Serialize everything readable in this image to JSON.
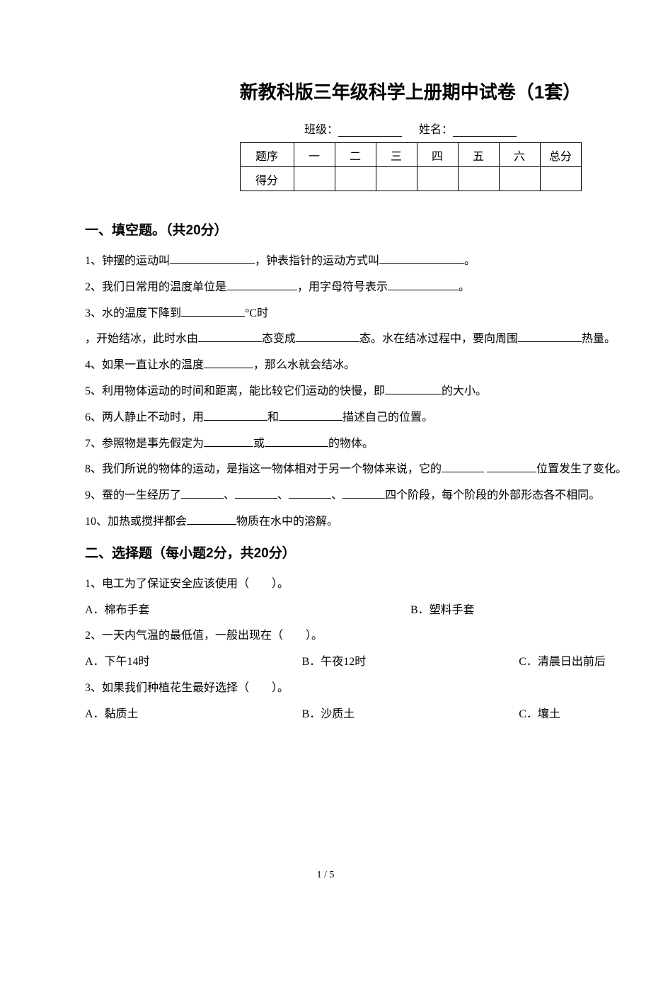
{
  "title": "新教科版三年级科学上册期中试卷（1套）",
  "info": {
    "class_label": "班级：",
    "name_label": "姓名："
  },
  "score_table": {
    "row1": [
      "题序",
      "一",
      "二",
      "三",
      "四",
      "五",
      "六",
      "总分"
    ],
    "row2_label": "得分"
  },
  "section1": {
    "heading": "一、填空题。（共20分）",
    "q1_a": "1、钟摆的运动叫",
    "q1_b": "，钟表指针的运动方式叫",
    "q1_c": "。",
    "q2_a": "2、我们日常用的温度单位是",
    "q2_b": "，用字母符号表示",
    "q2_c": "。",
    "q3_a": "3、水的温度下降到",
    "q3_b": "°C时",
    "q3_c": "，开始结冰，此时水由",
    "q3_d": "态变成",
    "q3_e": "态。水在结冰过程中，要向周围",
    "q3_f": "热量。",
    "q4_a": "4、如果一直让水的温度",
    "q4_b": "，那么水就会结冰。",
    "q5_a": "5、利用物体运动的时间和距离，能比较它们运动的快慢，即",
    "q5_b": "的大小。",
    "q6_a": "6、两人静止不动时，用",
    "q6_b": "和",
    "q6_c": "描述自己的位置。",
    "q7_a": "7、参照物是事先假定为",
    "q7_b": "或",
    "q7_c": "的物体。",
    "q8_a": "8、我们所说的物体的运动，是指这一物体相对于另一个物体来说，它的",
    "q8_b": "位置发生了变化。",
    "q9_a": "9、蚕的一生经历了",
    "q9_b": "、",
    "q9_c": "、",
    "q9_d": "、",
    "q9_e": "四个阶段，每个阶段的外部形态各不相同。",
    "q10_a": "10、加热或搅拌都会",
    "q10_b": "物质在水中的溶解。"
  },
  "section2": {
    "heading": "二、选择题（每小题2分，共20分）",
    "q1": "1、电工为了保证安全应该使用（　　）。",
    "q1_optA": "A．棉布手套",
    "q1_optB": "B．塑料手套",
    "q2": "2、一天内气温的最低值，一般出现在（　　）。",
    "q2_optA": "A．下午14时",
    "q2_optB": "B．午夜12时",
    "q2_optC": "C．清晨日出前后",
    "q3": "3、如果我们种植花生最好选择（　　）。",
    "q3_optA": "A．黏质土",
    "q3_optB": "B．沙质土",
    "q3_optC": "C．壤土"
  },
  "page_num": "1 / 5"
}
